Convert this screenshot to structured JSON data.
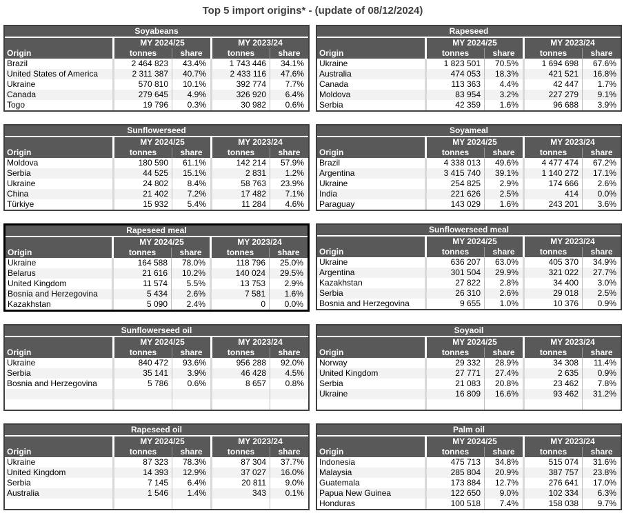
{
  "title": "Top 5 import origins* - (update of 08/12/2024)",
  "column_headers": {
    "origin": "Origin",
    "my_2024_25": "MY 2024/25",
    "my_2023_24": "MY 2023/24",
    "tonnes": "tonnes",
    "share": "share"
  },
  "colors": {
    "header_bg": "#595959",
    "header_text": "#ffffff",
    "title_text": "#3f3f3f",
    "body_text": "#000000",
    "row_stripe": "#f2f2f2",
    "table_border": "#3f3f3f",
    "highlight_border": "#000000",
    "group_separator": "#d9d9d9",
    "thin_separator": "#bfbfbf",
    "header_thin_separator": "#989898"
  },
  "tables": [
    {
      "name": "Soyabeans",
      "highlighted": false,
      "rows": [
        [
          "Brazil",
          "2 464 823",
          "43.4%",
          "1 743 446",
          "34.1%"
        ],
        [
          "United States of America",
          "2 311 387",
          "40.7%",
          "2 433 116",
          "47.6%"
        ],
        [
          "Ukraine",
          "570 810",
          "10.1%",
          "392 774",
          "7.7%"
        ],
        [
          "Canada",
          "279 645",
          "4.9%",
          "326 920",
          "6.4%"
        ],
        [
          "Togo",
          "19 796",
          "0.3%",
          "30 982",
          "0.6%"
        ]
      ]
    },
    {
      "name": "Rapeseed",
      "highlighted": false,
      "rows": [
        [
          "Ukraine",
          "1 823 501",
          "70.5%",
          "1 694 698",
          "67.6%"
        ],
        [
          "Australia",
          "474 053",
          "18.3%",
          "421 521",
          "16.8%"
        ],
        [
          "Canada",
          "113 363",
          "4.4%",
          "42 447",
          "1.7%"
        ],
        [
          "Moldova",
          "83 954",
          "3.2%",
          "227 279",
          "9.1%"
        ],
        [
          "Serbia",
          "42 359",
          "1.6%",
          "96 688",
          "3.9%"
        ]
      ]
    },
    {
      "name": "Sunflowerseed",
      "highlighted": false,
      "rows": [
        [
          "Moldova",
          "180 590",
          "61.1%",
          "142 214",
          "57.9%"
        ],
        [
          "Serbia",
          "44 525",
          "15.1%",
          "2 831",
          "1.2%"
        ],
        [
          "Ukraine",
          "24 802",
          "8.4%",
          "58 763",
          "23.9%"
        ],
        [
          "China",
          "21 402",
          "7.2%",
          "17 482",
          "7.1%"
        ],
        [
          "Türkiye",
          "15 932",
          "5.4%",
          "11 284",
          "4.6%"
        ]
      ]
    },
    {
      "name": "Soyameal",
      "highlighted": false,
      "rows": [
        [
          "Brazil",
          "4 338 013",
          "49.6%",
          "4 477 474",
          "67.2%"
        ],
        [
          "Argentina",
          "3 415 740",
          "39.1%",
          "1 140 272",
          "17.1%"
        ],
        [
          "Ukraine",
          "254 825",
          "2.9%",
          "174 666",
          "2.6%"
        ],
        [
          "India",
          "221 626",
          "2.5%",
          "414",
          "0.0%"
        ],
        [
          "Paraguay",
          "143 029",
          "1.6%",
          "243 201",
          "3.6%"
        ]
      ]
    },
    {
      "name": "Rapeseed meal",
      "highlighted": true,
      "rows": [
        [
          "Ukraine",
          "164 588",
          "78.0%",
          "118 796",
          "25.0%"
        ],
        [
          "Belarus",
          "21 616",
          "10.2%",
          "140 024",
          "29.5%"
        ],
        [
          "United Kingdom",
          "11 574",
          "5.5%",
          "13 753",
          "2.9%"
        ],
        [
          "Bosnia and Herzegovina",
          "5 434",
          "2.6%",
          "7 581",
          "1.6%"
        ],
        [
          "Kazakhstan",
          "5 090",
          "2.4%",
          "0",
          "0.0%"
        ]
      ]
    },
    {
      "name": "Sunflowerseed meal",
      "highlighted": false,
      "rows": [
        [
          "Ukraine",
          "636 207",
          "63.0%",
          "405 370",
          "34.9%"
        ],
        [
          "Argentina",
          "301 504",
          "29.9%",
          "321 022",
          "27.7%"
        ],
        [
          "Kazakhstan",
          "27 822",
          "2.8%",
          "34 400",
          "3.0%"
        ],
        [
          "Serbia",
          "26 310",
          "2.6%",
          "29 018",
          "2.5%"
        ],
        [
          "Bosnia and Herzegovina",
          "9 655",
          "1.0%",
          "10 376",
          "0.9%"
        ]
      ]
    },
    {
      "name": "Sunflowerseed oil",
      "highlighted": false,
      "rows": [
        [
          "Ukraine",
          "840 472",
          "93.6%",
          "956 288",
          "92.0%"
        ],
        [
          "Serbia",
          "35 141",
          "3.9%",
          "46 428",
          "4.5%"
        ],
        [
          "Bosnia and Herzegovina",
          "5 786",
          "0.6%",
          "8 657",
          "0.8%"
        ],
        [
          "",
          "",
          "",
          "",
          ""
        ],
        [
          "",
          "",
          "",
          "",
          ""
        ]
      ]
    },
    {
      "name": "Soyaoil",
      "highlighted": false,
      "rows": [
        [
          "Norway",
          "29 332",
          "28.9%",
          "34 308",
          "11.4%"
        ],
        [
          "United Kingdom",
          "27 771",
          "27.4%",
          "2 635",
          "0.9%"
        ],
        [
          "Serbia",
          "21 083",
          "20.8%",
          "23 462",
          "7.8%"
        ],
        [
          "Ukraine",
          "16 809",
          "16.6%",
          "93 462",
          "31.2%"
        ],
        [
          "",
          "",
          "",
          "",
          ""
        ]
      ]
    },
    {
      "name": "Rapeseed oil",
      "highlighted": false,
      "rows": [
        [
          "Ukraine",
          "87 323",
          "78.3%",
          "87 304",
          "37.7%"
        ],
        [
          "United Kingdom",
          "14 393",
          "12.9%",
          "37 027",
          "16.0%"
        ],
        [
          "Serbia",
          "7 145",
          "6.4%",
          "20 811",
          "9.0%"
        ],
        [
          "Australia",
          "1 546",
          "1.4%",
          "343",
          "0.1%"
        ],
        [
          "",
          "",
          "",
          "",
          ""
        ]
      ]
    },
    {
      "name": "Palm oil",
      "highlighted": false,
      "rows": [
        [
          "Indonesia",
          "475 713",
          "34.8%",
          "515 074",
          "31.6%"
        ],
        [
          "Malaysia",
          "285 804",
          "20.9%",
          "387 757",
          "23.8%"
        ],
        [
          "Guatemala",
          "173 884",
          "12.7%",
          "276 641",
          "17.0%"
        ],
        [
          "Papua New Guinea",
          "122 650",
          "9.0%",
          "102 334",
          "6.3%"
        ],
        [
          "Honduras",
          "100 518",
          "7.4%",
          "158 038",
          "9.7%"
        ]
      ]
    }
  ]
}
